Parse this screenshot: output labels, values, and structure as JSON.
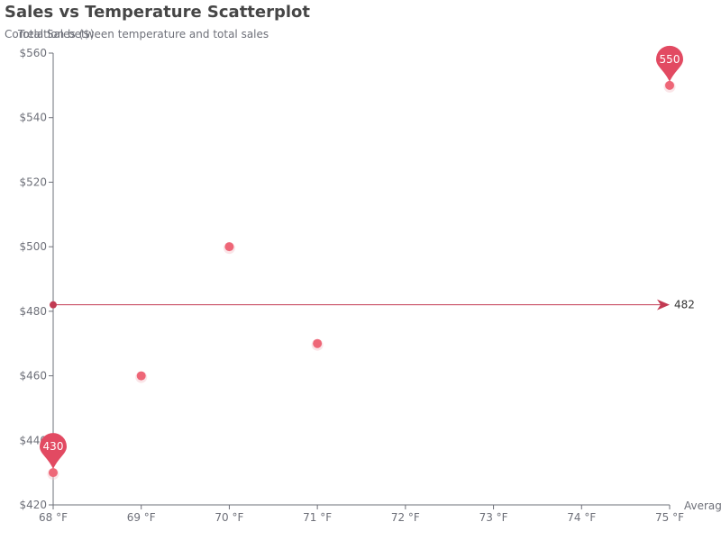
{
  "chart_data": {
    "type": "scatter",
    "title": "Sales vs Temperature Scatterplot",
    "subtitle": "Correlation between temperature and total sales",
    "ylabel": "Total Sales ($)",
    "xlabel": "Average",
    "xlim": [
      68,
      75
    ],
    "ylim": [
      420,
      560
    ],
    "x_ticks": [
      "68 °F",
      "69 °F",
      "70 °F",
      "71 °F",
      "72 °F",
      "73 °F",
      "74 °F",
      "75 °F"
    ],
    "y_ticks": [
      "$420",
      "$440",
      "$460",
      "$480",
      "$500",
      "$520",
      "$540",
      "$560"
    ],
    "x_tick_values": [
      68,
      69,
      70,
      71,
      72,
      73,
      74,
      75
    ],
    "y_tick_values": [
      420,
      440,
      460,
      480,
      500,
      520,
      540,
      560
    ],
    "points": [
      {
        "x": 68,
        "y": 430
      },
      {
        "x": 69,
        "y": 460
      },
      {
        "x": 70,
        "y": 500
      },
      {
        "x": 71,
        "y": 470
      },
      {
        "x": 75,
        "y": 550
      }
    ],
    "mark_points": [
      {
        "x": 75,
        "y": 550,
        "label": "550"
      },
      {
        "x": 68,
        "y": 430,
        "label": "430"
      }
    ],
    "mark_line": {
      "y": 482,
      "label": "482"
    },
    "grid": false,
    "colors": {
      "point": "#ee6677",
      "pin": "#e24a62",
      "mark_line": "#c23a52",
      "axis": "#6e7079"
    }
  }
}
